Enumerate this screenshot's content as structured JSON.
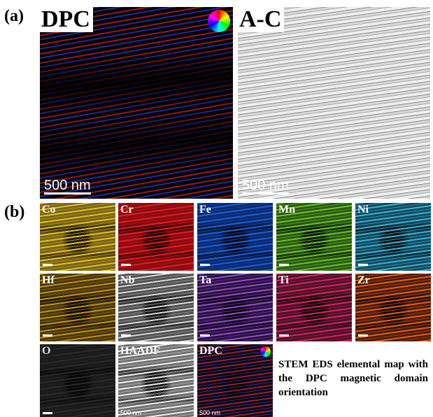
{
  "panel_a": {
    "label": "(a)",
    "images": [
      {
        "title": "DPC",
        "scale_bar": "500 nm"
      },
      {
        "title": "A-C",
        "scale_bar": "500 nm"
      }
    ]
  },
  "panel_b": {
    "label": "(b)",
    "maps": [
      {
        "label": "Co"
      },
      {
        "label": "Cr"
      },
      {
        "label": "Fe"
      },
      {
        "label": "Mn"
      },
      {
        "label": "Ni"
      },
      {
        "label": "Hf"
      },
      {
        "label": "Nb"
      },
      {
        "label": "Ta"
      },
      {
        "label": "Ti"
      },
      {
        "label": "Zr"
      },
      {
        "label": "O"
      },
      {
        "label": "HAADF",
        "scale_bar": "500 nm"
      },
      {
        "label": "DPC",
        "scale_bar": "500 nm"
      }
    ],
    "caption": "STEM EDS elemental map with the DPC magnetic domain orientation"
  }
}
